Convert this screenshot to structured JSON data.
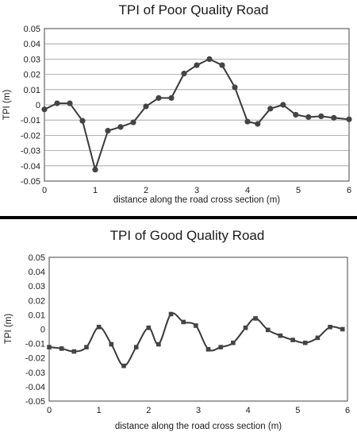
{
  "chart_data": [
    {
      "type": "line",
      "title": "TPI of Poor Quality Road",
      "xlabel": "distance along the road cross section (m)",
      "ylabel": "TPI (m)",
      "xlim": [
        0,
        6
      ],
      "ylim": [
        -0.05,
        0.05
      ],
      "xticks": [
        0,
        1,
        2,
        3,
        4,
        5,
        6
      ],
      "xtick_labels": [
        "0",
        "1",
        "2",
        "3",
        "4",
        "5",
        "6"
      ],
      "yticks": [
        0.05,
        0.04,
        0.03,
        0.02,
        0.01,
        0,
        -0.01,
        -0.02,
        -0.03,
        -0.04,
        -0.05
      ],
      "ytick_labels": [
        "0.05",
        "0.04",
        "0.03",
        "0.02",
        "0.01",
        "0",
        "-0.01",
        "-0.02",
        "-0.03",
        "-0.04",
        "-0.05"
      ],
      "grid": "horizontal",
      "marker": "circle",
      "smooth": false,
      "series": [
        {
          "x": [
            0,
            0.25,
            0.5,
            0.75,
            1.0,
            1.25,
            1.5,
            1.75,
            2.0,
            2.25,
            2.5,
            2.75,
            3.0,
            3.25,
            3.5,
            3.75,
            4.0,
            4.2,
            4.45,
            4.7,
            4.95,
            5.2,
            5.45,
            5.7,
            6.0
          ],
          "values": [
            -0.003,
            0.001,
            0.001,
            -0.0105,
            -0.0425,
            -0.017,
            -0.0145,
            -0.0115,
            -0.001,
            0.0045,
            0.0045,
            0.0205,
            0.026,
            0.03,
            0.026,
            0.0115,
            -0.011,
            -0.0125,
            -0.0025,
            0.0,
            -0.0065,
            -0.008,
            -0.0075,
            -0.0085,
            -0.0095
          ]
        }
      ]
    },
    {
      "type": "line",
      "title": "TPI of Good Quality Road",
      "xlabel": "distance along the road cross section (m)",
      "ylabel": "TPI (m)",
      "xlim": [
        0,
        6
      ],
      "ylim": [
        -0.05,
        0.05
      ],
      "xticks": [
        0,
        1,
        2,
        3,
        4,
        5,
        6
      ],
      "xtick_labels": [
        "0",
        "1",
        "2",
        "3",
        "4",
        "5",
        "6"
      ],
      "yticks": [
        0.05,
        0.04,
        0.03,
        0.02,
        0.01,
        0,
        -0.01,
        -0.02,
        -0.03,
        -0.04,
        -0.05
      ],
      "ytick_labels": [
        "0.05",
        "0.04",
        "0.03",
        "0.02",
        "0.01",
        "0",
        "-0.01",
        "-0.02",
        "-0.03",
        "-0.04",
        "-0.05"
      ],
      "grid": "none",
      "marker": "square",
      "smooth": true,
      "series": [
        {
          "x": [
            0,
            0.25,
            0.5,
            0.75,
            1.0,
            1.25,
            1.5,
            1.75,
            2.0,
            2.2,
            2.45,
            2.7,
            2.95,
            3.2,
            3.45,
            3.7,
            3.95,
            4.15,
            4.4,
            4.65,
            4.9,
            5.15,
            5.4,
            5.65,
            5.9
          ],
          "values": [
            -0.0125,
            -0.0135,
            -0.0155,
            -0.0125,
            0.0015,
            -0.0105,
            -0.0255,
            -0.0125,
            0.001,
            -0.0105,
            0.0105,
            0.005,
            0.0025,
            -0.014,
            -0.0125,
            -0.0095,
            0.001,
            0.0075,
            -0.0005,
            -0.0045,
            -0.0075,
            -0.0095,
            -0.006,
            0.0015,
            0.0
          ]
        }
      ]
    }
  ],
  "colors": {
    "line": "#3a3a3a",
    "marker": "#444444",
    "grid": "#9a9a9a"
  }
}
